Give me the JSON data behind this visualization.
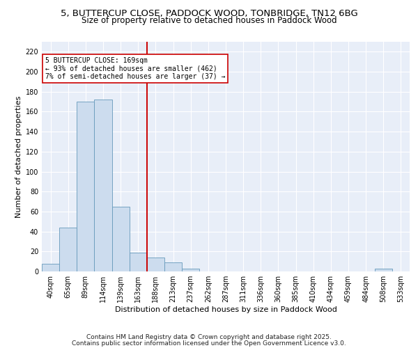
{
  "title": "5, BUTTERCUP CLOSE, PADDOCK WOOD, TONBRIDGE, TN12 6BG",
  "subtitle": "Size of property relative to detached houses in Paddock Wood",
  "xlabel": "Distribution of detached houses by size in Paddock Wood",
  "ylabel": "Number of detached properties",
  "bar_color": "#ccdcee",
  "bar_edge_color": "#6699bb",
  "background_color": "#e8eef8",
  "grid_color": "#ffffff",
  "vline_color": "#cc0000",
  "vline_x_idx": 5.5,
  "annotation_text": "5 BUTTERCUP CLOSE: 169sqm\n← 93% of detached houses are smaller (462)\n7% of semi-detached houses are larger (37) →",
  "annotation_box_color": "#ffffff",
  "annotation_box_edge": "#cc0000",
  "categories": [
    "40sqm",
    "65sqm",
    "89sqm",
    "114sqm",
    "139sqm",
    "163sqm",
    "188sqm",
    "213sqm",
    "237sqm",
    "262sqm",
    "287sqm",
    "311sqm",
    "336sqm",
    "360sqm",
    "385sqm",
    "410sqm",
    "434sqm",
    "459sqm",
    "484sqm",
    "508sqm",
    "533sqm"
  ],
  "values": [
    8,
    44,
    170,
    172,
    65,
    19,
    14,
    9,
    3,
    0,
    0,
    0,
    0,
    0,
    0,
    0,
    0,
    0,
    0,
    3,
    0
  ],
  "ylim": [
    0,
    230
  ],
  "yticks": [
    0,
    20,
    40,
    60,
    80,
    100,
    120,
    140,
    160,
    180,
    200,
    220
  ],
  "footnote_line1": "Contains HM Land Registry data © Crown copyright and database right 2025.",
  "footnote_line2": "Contains public sector information licensed under the Open Government Licence v3.0.",
  "title_fontsize": 9.5,
  "subtitle_fontsize": 8.5,
  "xlabel_fontsize": 8,
  "ylabel_fontsize": 8,
  "tick_fontsize": 7,
  "annotation_fontsize": 7,
  "footnote_fontsize": 6.5
}
